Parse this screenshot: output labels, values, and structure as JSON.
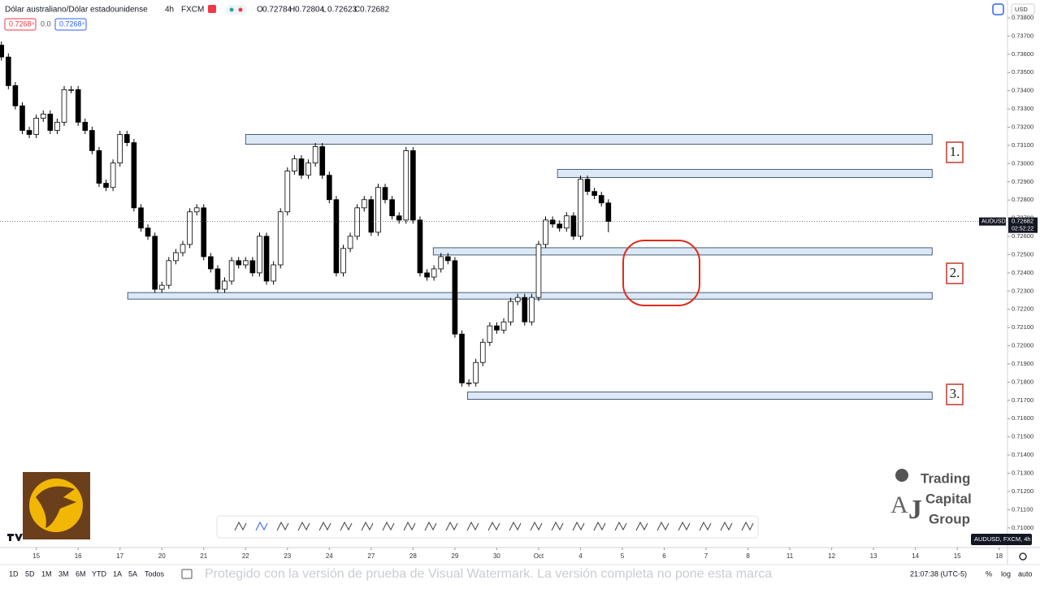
{
  "header": {
    "symbol": "Dólar australiano/Dólar estadounidense",
    "interval": "4h",
    "exchange": "FXCM",
    "ohlc_labels": [
      "O",
      "H",
      "L",
      "C"
    ],
    "bid": "0.7268⁴",
    "spread": "0.0",
    "ask": "0.7268⁴",
    "currency": "USD"
  },
  "chart_data": {
    "type": "candlestick",
    "symbol_tag": "AUDUSD",
    "countdown": "02:52:22",
    "colors": {
      "up": "#ffffff",
      "down": "#000000",
      "outline": "#000000",
      "zone_fill": "#dce8f5",
      "zone_stroke": "#1f3a5c",
      "label_stroke": "#c0392b"
    },
    "x": [
      -5,
      -4,
      -3,
      -2,
      -1,
      0,
      1,
      2,
      3,
      4,
      5,
      6,
      7,
      8,
      9,
      10,
      11,
      12,
      13,
      14,
      15,
      16,
      17,
      18,
      19,
      20,
      21,
      22,
      23,
      24,
      25,
      26,
      27,
      28,
      29,
      30,
      31,
      32,
      33,
      34,
      35,
      36,
      37,
      38,
      39,
      40,
      41,
      42,
      43,
      44,
      45,
      46,
      47,
      48,
      49,
      50,
      51,
      52,
      53,
      54,
      55,
      56,
      57,
      58,
      59,
      60,
      61,
      62,
      63,
      64,
      65,
      66,
      67,
      68,
      69,
      70,
      71,
      72,
      73,
      74,
      75,
      76,
      77,
      78,
      79,
      80,
      81,
      82
    ],
    "open": [
      0.7365,
      0.73585,
      0.73428,
      0.73317,
      0.73182,
      0.7316,
      0.73249,
      0.73272,
      0.73182,
      0.73227,
      0.73406,
      0.73406,
      0.73227,
      0.73182,
      0.73071,
      0.72892,
      0.72869,
      0.73003,
      0.7316,
      0.73115,
      0.72757,
      0.72646,
      0.72601,
      0.7231,
      0.72332,
      0.72467,
      0.72511,
      0.72556,
      0.72735,
      0.72757,
      0.72489,
      0.72422,
      0.7231,
      0.72355,
      0.72467,
      0.72444,
      0.72467,
      0.724,
      0.72601,
      0.72355,
      0.72444,
      0.72735,
      0.72959,
      0.73026,
      0.72936,
      0.73003,
      0.73093,
      0.72936,
      0.72802,
      0.724,
      0.72534,
      0.72601,
      0.72757,
      0.72802,
      0.72623,
      0.72869,
      0.72802,
      0.72713,
      0.7269,
      0.73071,
      0.7269,
      0.724,
      0.72377,
      0.72422,
      0.72489,
      0.72467,
      0.72064,
      0.71796,
      0.71796,
      0.71908,
      0.72019,
      0.72109,
      0.72086,
      0.72131,
      0.72243,
      0.72265,
      0.72131,
      0.72265,
      0.72556,
      0.7269,
      0.72668,
      0.72646,
      0.72713,
      0.72601,
      0.72914,
      0.72847,
      0.72825,
      0.72784
    ],
    "high": [
      0.7367,
      0.73605,
      0.73448,
      0.73337,
      0.73202,
      0.73269,
      0.73292,
      0.73292,
      0.73247,
      0.73426,
      0.73426,
      0.73426,
      0.73247,
      0.73202,
      0.73091,
      0.72912,
      0.73023,
      0.7318,
      0.7318,
      0.73135,
      0.72777,
      0.72666,
      0.72621,
      0.72352,
      0.72487,
      0.72531,
      0.72576,
      0.72755,
      0.72777,
      0.72777,
      0.72509,
      0.72442,
      0.72375,
      0.72487,
      0.72487,
      0.72487,
      0.72487,
      0.72621,
      0.72621,
      0.72464,
      0.72755,
      0.72979,
      0.73046,
      0.73046,
      0.73023,
      0.73113,
      0.73113,
      0.72956,
      0.72822,
      0.72554,
      0.72621,
      0.72777,
      0.72822,
      0.72822,
      0.72889,
      0.72889,
      0.72822,
      0.72733,
      0.73091,
      0.73091,
      0.7271,
      0.7242,
      0.72442,
      0.72509,
      0.72509,
      0.72487,
      0.72084,
      0.71816,
      0.71928,
      0.72039,
      0.72129,
      0.72129,
      0.72151,
      0.72263,
      0.72285,
      0.72285,
      0.72285,
      0.72576,
      0.7271,
      0.7271,
      0.72688,
      0.72733,
      0.72733,
      0.72934,
      0.72934,
      0.72867,
      0.72845,
      0.72804
    ],
    "low": [
      0.73565,
      0.73408,
      0.73297,
      0.73162,
      0.7314,
      0.7314,
      0.73229,
      0.73162,
      0.73162,
      0.73207,
      0.73386,
      0.73207,
      0.73162,
      0.73051,
      0.72872,
      0.72849,
      0.72849,
      0.72983,
      0.73095,
      0.72737,
      0.72626,
      0.72581,
      0.7229,
      0.7229,
      0.72312,
      0.72447,
      0.72491,
      0.72536,
      0.72715,
      0.72469,
      0.72402,
      0.7229,
      0.7229,
      0.72335,
      0.72424,
      0.72424,
      0.7238,
      0.7238,
      0.72335,
      0.72335,
      0.72424,
      0.72715,
      0.72939,
      0.72916,
      0.72916,
      0.72983,
      0.72916,
      0.72782,
      0.7238,
      0.7238,
      0.72514,
      0.72581,
      0.72737,
      0.72603,
      0.72603,
      0.72782,
      0.72693,
      0.7267,
      0.7267,
      0.7267,
      0.7238,
      0.72357,
      0.72357,
      0.72402,
      0.72447,
      0.72044,
      0.71776,
      0.71776,
      0.71776,
      0.71888,
      0.71999,
      0.72066,
      0.72066,
      0.72111,
      0.72223,
      0.72111,
      0.72111,
      0.72245,
      0.72536,
      0.72648,
      0.72626,
      0.72626,
      0.72581,
      0.72581,
      0.72827,
      0.72805,
      0.72764,
      0.72623
    ],
    "close": [
      0.73585,
      0.73428,
      0.73317,
      0.73182,
      0.7316,
      0.73249,
      0.73272,
      0.73182,
      0.73227,
      0.73406,
      0.73406,
      0.73227,
      0.73182,
      0.73071,
      0.72892,
      0.72869,
      0.73003,
      0.7316,
      0.73115,
      0.72757,
      0.72646,
      0.72601,
      0.7231,
      0.72332,
      0.72467,
      0.72511,
      0.72556,
      0.72735,
      0.72757,
      0.72489,
      0.72422,
      0.7231,
      0.72355,
      0.72467,
      0.72444,
      0.72467,
      0.724,
      0.72601,
      0.72355,
      0.72444,
      0.72735,
      0.72959,
      0.73026,
      0.72936,
      0.73003,
      0.73093,
      0.72936,
      0.72802,
      0.724,
      0.72534,
      0.72601,
      0.72757,
      0.72802,
      0.72623,
      0.72869,
      0.72802,
      0.72713,
      0.7269,
      0.73071,
      0.7269,
      0.724,
      0.72377,
      0.72422,
      0.72489,
      0.72467,
      0.72064,
      0.71796,
      0.71796,
      0.71908,
      0.72019,
      0.72109,
      0.72086,
      0.72131,
      0.72243,
      0.72265,
      0.72131,
      0.72265,
      0.72556,
      0.7269,
      0.72668,
      0.72646,
      0.72713,
      0.72601,
      0.72914,
      0.72847,
      0.72825,
      0.72784,
      0.72682
    ],
    "xlim": [
      -5.2,
      139.2
    ],
    "xticks": [
      {
        "value": 0,
        "label": "15"
      },
      {
        "value": 6,
        "label": "16"
      },
      {
        "value": 12,
        "label": "17"
      },
      {
        "value": 18,
        "label": "20"
      },
      {
        "value": 24,
        "label": "21"
      },
      {
        "value": 30,
        "label": "22"
      },
      {
        "value": 36,
        "label": "23"
      },
      {
        "value": 42,
        "label": "24"
      },
      {
        "value": 48,
        "label": "27"
      },
      {
        "value": 54,
        "label": "28"
      },
      {
        "value": 60,
        "label": "29"
      },
      {
        "value": 66,
        "label": "30"
      },
      {
        "value": 72,
        "label": "Oct"
      },
      {
        "value": 78,
        "label": "4"
      },
      {
        "value": 84,
        "label": "5"
      },
      {
        "value": 90,
        "label": "6"
      },
      {
        "value": 96,
        "label": "7"
      },
      {
        "value": 102,
        "label": "8"
      },
      {
        "value": 108,
        "label": "11"
      },
      {
        "value": 114,
        "label": "12"
      },
      {
        "value": 120,
        "label": "13"
      },
      {
        "value": 126,
        "label": "14"
      },
      {
        "value": 132,
        "label": "15"
      },
      {
        "value": 138,
        "label": "18"
      }
    ],
    "ylim": [
      0.70892,
      0.73898
    ],
    "yticks": [
      {
        "value": 0.738,
        "label": "0.73800"
      },
      {
        "value": 0.737,
        "label": "0.73700"
      },
      {
        "value": 0.736,
        "label": "0.73600"
      },
      {
        "value": 0.735,
        "label": "0.73500"
      },
      {
        "value": 0.734,
        "label": "0.73400"
      },
      {
        "value": 0.733,
        "label": "0.73300"
      },
      {
        "value": 0.732,
        "label": "0.73200"
      },
      {
        "value": 0.731,
        "label": "0.73100"
      },
      {
        "value": 0.73,
        "label": "0.73000"
      },
      {
        "value": 0.729,
        "label": "0.72900"
      },
      {
        "value": 0.728,
        "label": "0.72800"
      },
      {
        "value": 0.727,
        "label": "0.72700"
      },
      {
        "value": 0.726,
        "label": "0.72600"
      },
      {
        "value": 0.725,
        "label": "0.72500"
      },
      {
        "value": 0.724,
        "label": "0.72400"
      },
      {
        "value": 0.723,
        "label": "0.72300"
      },
      {
        "value": 0.722,
        "label": "0.72200"
      },
      {
        "value": 0.721,
        "label": "0.72100"
      },
      {
        "value": 0.72,
        "label": "0.72000"
      },
      {
        "value": 0.719,
        "label": "0.71900"
      },
      {
        "value": 0.718,
        "label": "0.71800"
      },
      {
        "value": 0.717,
        "label": "0.71700"
      },
      {
        "value": 0.716,
        "label": "0.71600"
      },
      {
        "value": 0.715,
        "label": "0.71500"
      },
      {
        "value": 0.714,
        "label": "0.71400"
      },
      {
        "value": 0.713,
        "label": "0.71300"
      },
      {
        "value": 0.712,
        "label": "0.71200"
      },
      {
        "value": 0.711,
        "label": "0.71100"
      },
      {
        "value": 0.71,
        "label": "0.71000"
      }
    ],
    "zones": [
      {
        "xlim": [
          30.0,
          128.4
        ],
        "ylim": [
          0.73106,
          0.7316
        ]
      },
      {
        "xlim": [
          74.7,
          128.4
        ],
        "ylim": [
          0.72923,
          0.72968
        ]
      },
      {
        "xlim": [
          56.9,
          128.4
        ],
        "ylim": [
          0.72498,
          0.72538
        ]
      },
      {
        "xlim": [
          13.1,
          128.4
        ],
        "ylim": [
          0.72256,
          0.72292
        ]
      },
      {
        "xlim": [
          61.8,
          128.4
        ],
        "ylim": [
          0.71706,
          0.71746
        ]
      }
    ],
    "zone_labels": [
      "1.",
      "2.",
      "3."
    ]
  },
  "footer": {
    "ranges": [
      "1D",
      "5D",
      "1M",
      "3M",
      "6M",
      "YTD",
      "1A",
      "5A",
      "Todos"
    ],
    "clock": "21:07:38 (UTC-5)",
    "percent": "%",
    "log": "log",
    "auto": "auto",
    "watermark": "Protegido con la versión de prueba de Visual Watermark. La versión completa no pone esta marca",
    "series_tag": "AUDUSD, FXCM, 4h"
  },
  "branding": {
    "line1": "Trading",
    "line2": "Capital",
    "line3": "Group"
  }
}
